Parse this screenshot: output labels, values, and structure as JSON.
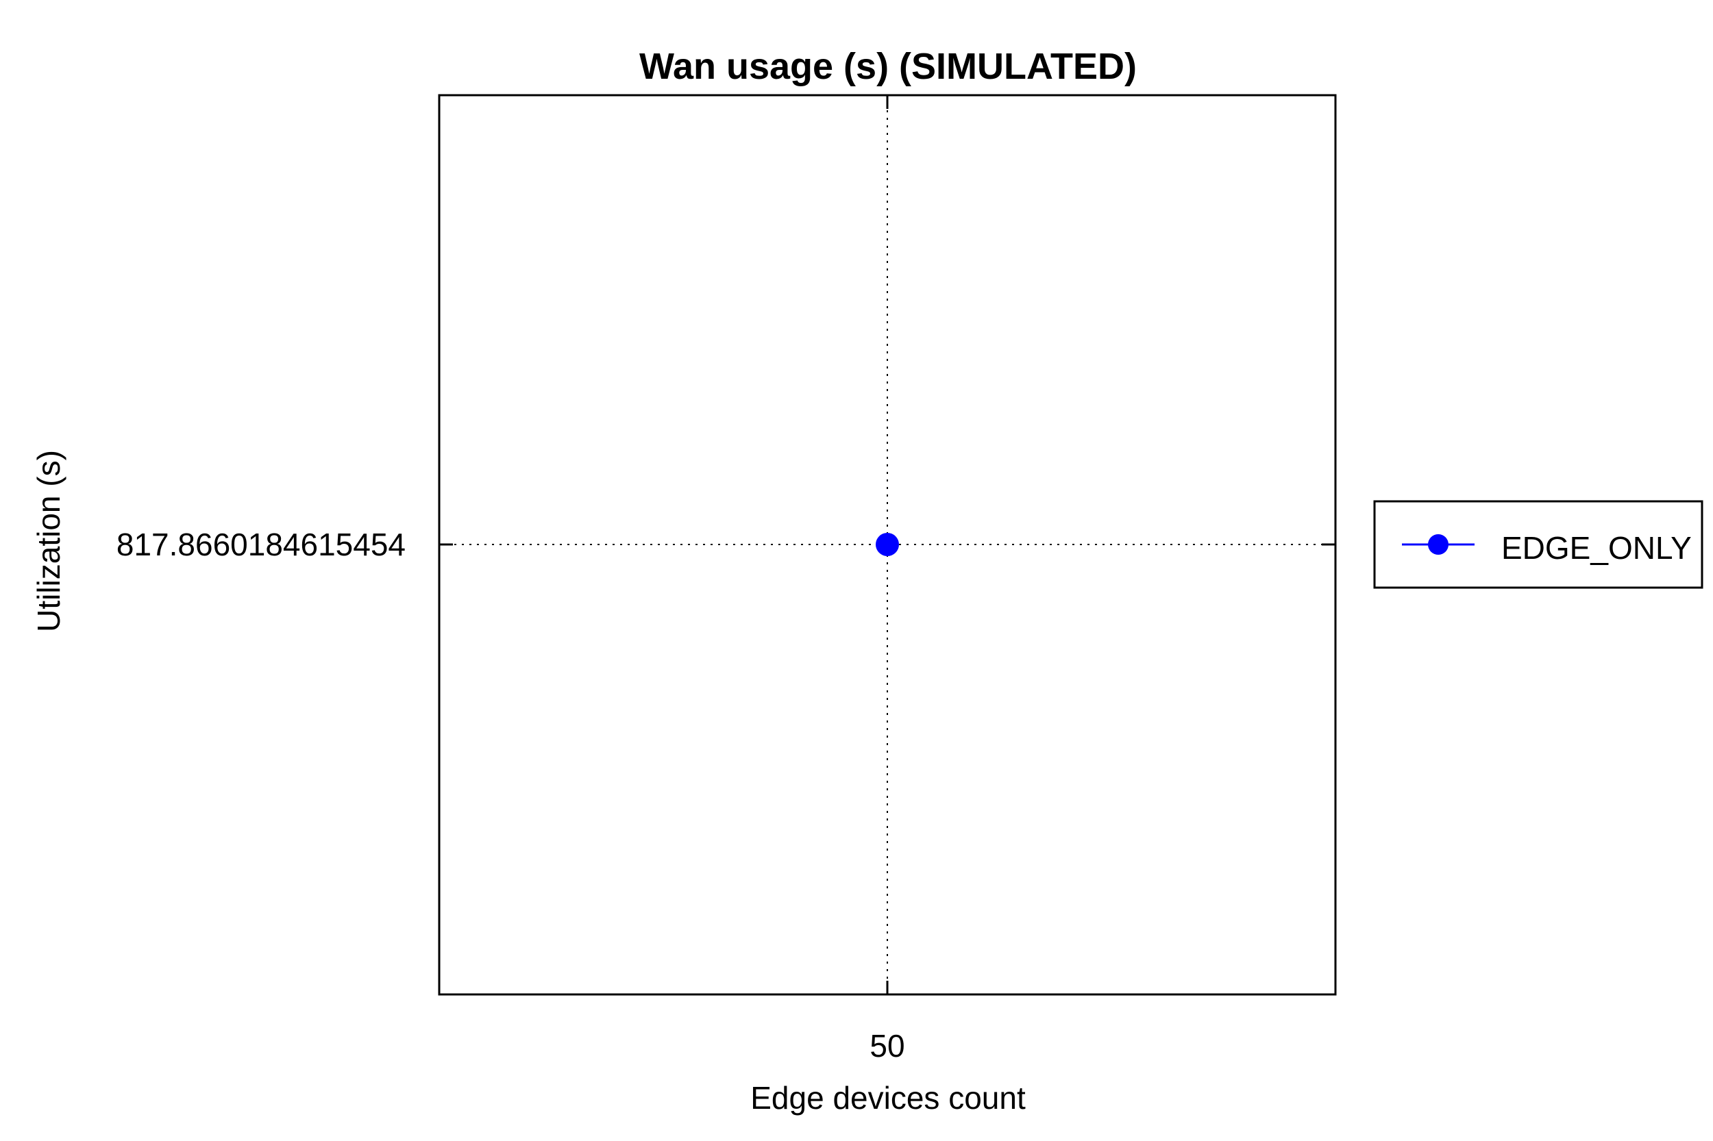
{
  "chart_data": {
    "type": "line",
    "title": "Wan usage (s) (SIMULATED)",
    "xlabel": "Edge devices count",
    "ylabel": "Utilization (s)",
    "x": [
      50
    ],
    "x_tick_labels": [
      "50"
    ],
    "y_tick_labels": [
      "817.8660184615454"
    ],
    "series": [
      {
        "name": "EDGE_ONLY",
        "x": [
          50
        ],
        "values": [
          817.8660184615454
        ],
        "color": "#0000ff",
        "marker": "circle"
      }
    ],
    "grid": true,
    "legend_position": "right"
  }
}
